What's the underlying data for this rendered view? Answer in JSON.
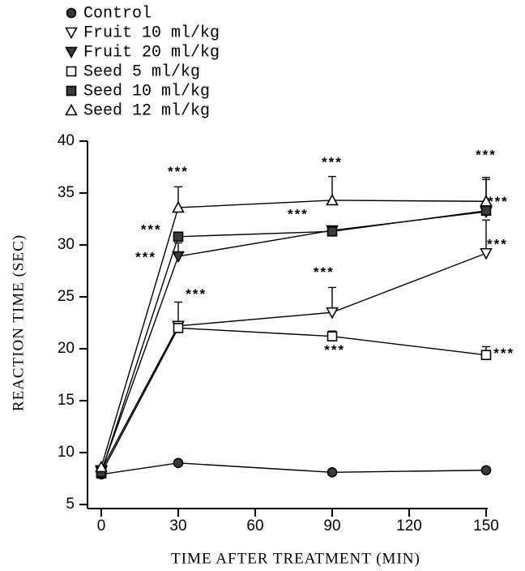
{
  "chart_data": {
    "type": "line",
    "xlabel": "TIME AFTER TREATMENT (MIN)",
    "ylabel": "REACTION TIME (SEC)",
    "x": [
      0,
      30,
      90,
      150
    ],
    "xlim": [
      0,
      150
    ],
    "ylim": [
      5,
      40
    ],
    "xticks": [
      0,
      30,
      60,
      90,
      120,
      150
    ],
    "yticks": [
      5,
      10,
      15,
      20,
      25,
      30,
      35,
      40
    ],
    "legend": "top-left",
    "series": [
      {
        "name": "Control",
        "marker": "circle",
        "filled": true,
        "color": "#000000",
        "values": [
          7.9,
          9.0,
          8.1,
          8.3
        ],
        "errors": [
          null,
          null,
          null,
          null
        ]
      },
      {
        "name": "Fruit 10 ml/kg",
        "marker": "triangle-down",
        "filled": false,
        "color": "#000000",
        "values": [
          8.3,
          22.2,
          23.5,
          29.2
        ],
        "errors": [
          null,
          2.3,
          2.4,
          3.2
        ]
      },
      {
        "name": "Fruit 20 ml/kg",
        "marker": "triangle-down",
        "filled": true,
        "color": "#000000",
        "values": [
          8.2,
          28.9,
          31.4,
          33.2
        ],
        "errors": [
          null,
          1.3,
          null,
          null
        ]
      },
      {
        "name": "Seed 5 ml/kg",
        "marker": "square",
        "filled": false,
        "color": "#000000",
        "values": [
          8.0,
          22.0,
          21.2,
          19.4
        ],
        "errors": [
          null,
          null,
          0.5,
          0.8
        ]
      },
      {
        "name": "Seed 10 ml/kg",
        "marker": "square",
        "filled": true,
        "color": "#000000",
        "values": [
          8.1,
          30.8,
          31.3,
          33.3
        ],
        "errors": [
          null,
          null,
          null,
          3.0
        ]
      },
      {
        "name": "Seed 12 ml/kg",
        "marker": "triangle-up",
        "filled": false,
        "color": "#000000",
        "values": [
          8.6,
          33.6,
          34.3,
          34.2
        ],
        "errors": [
          null,
          2.0,
          2.3,
          2.3
        ]
      }
    ],
    "annotations": [
      {
        "text": "***",
        "x": 30,
        "y": 37.0
      },
      {
        "text": "***",
        "x": 90,
        "y": 37.9
      },
      {
        "text": "***",
        "x": 150,
        "y": 38.6
      },
      {
        "text": "***",
        "x": 154.7,
        "y": 34.1
      },
      {
        "text": "***",
        "x": 19.5,
        "y": 31.4
      },
      {
        "text": "***",
        "x": 17.4,
        "y": 28.75
      },
      {
        "text": "***",
        "x": 37,
        "y": 25.2
      },
      {
        "text": "***",
        "x": 76.7,
        "y": 32.9
      },
      {
        "text": "***",
        "x": 86.8,
        "y": 27.3
      },
      {
        "text": "***",
        "x": 91,
        "y": 19.8
      },
      {
        "text": "***",
        "x": 154.4,
        "y": 30.0
      },
      {
        "text": "***",
        "x": 157,
        "y": 19.5
      }
    ]
  }
}
